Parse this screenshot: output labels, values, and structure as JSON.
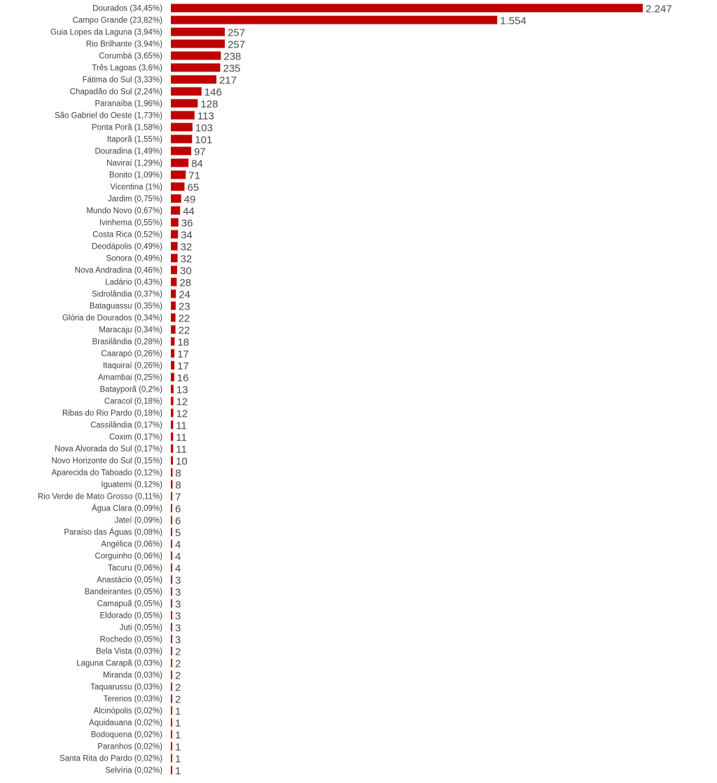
{
  "chart_data": {
    "type": "bar",
    "orientation": "horizontal",
    "color": "#c00000",
    "grid": false,
    "legend": false,
    "title": "",
    "xlabel": "",
    "ylabel": "",
    "xlim": [
      0,
      2247
    ],
    "categories": [
      "Dourados (34,45%)",
      "Campo Grande (23,82%)",
      "Guia Lopes da Laguna (3,94%)",
      "Rio Brilhante (3,94%)",
      "Corumbá (3,65%)",
      "Três Lagoas (3,6%)",
      "Fátima do Sul (3,33%)",
      "Chapadão do Sul (2,24%)",
      "Paranaíba (1,96%)",
      "São Gabriel do Oeste (1,73%)",
      "Ponta Porã (1,58%)",
      "Itaporã (1,55%)",
      "Douradina (1,49%)",
      "Naviraí (1,29%)",
      "Bonito (1,09%)",
      "Vicentina (1%)",
      "Jardim (0,75%)",
      "Mundo Novo (0,67%)",
      "Ivinhema (0,55%)",
      "Costa Rica (0,52%)",
      "Deodápolis (0,49%)",
      "Sonora (0,49%)",
      "Nova Andradina (0,46%)",
      "Ladário (0,43%)",
      "Sidrolândia (0,37%)",
      "Bataguassu (0,35%)",
      "Glória de Dourados (0,34%)",
      "Maracaju (0,34%)",
      "Brasilândia (0,28%)",
      "Caarapó (0,26%)",
      "Itaquiraí (0,26%)",
      "Amambai (0,25%)",
      "Batayporã (0,2%)",
      "Caracol (0,18%)",
      "Ribas do Rio Pardo (0,18%)",
      "Cassilândia (0,17%)",
      "Coxim (0,17%)",
      "Nova Alvorada do Sul (0,17%)",
      "Novo Horizonte do Sul (0,15%)",
      "Aparecida do Taboado (0,12%)",
      "Iguatemi (0,12%)",
      "Rio Verde de Mato Grosso (0,11%)",
      "Água Clara (0,09%)",
      "Jateí (0,09%)",
      "Paraíso das Águas (0,08%)",
      "Angélica (0,06%)",
      "Corguinho (0,06%)",
      "Tacuru (0,06%)",
      "Anastácio (0,05%)",
      "Bandeirantes (0,05%)",
      "Camapuã (0,05%)",
      "Eldorado (0,05%)",
      "Juti (0,05%)",
      "Rochedo (0,05%)",
      "Bela Vista (0,03%)",
      "Laguna Carapã (0,03%)",
      "Miranda (0,03%)",
      "Taquarussu (0,03%)",
      "Terenos (0,03%)",
      "Alcinópolis (0,02%)",
      "Aquidauana (0,02%)",
      "Bodoquena (0,02%)",
      "Paranhos (0,02%)",
      "Santa Rita do Pardo (0,02%)",
      "Selvíria (0,02%)"
    ],
    "values": [
      2247,
      1554,
      257,
      257,
      238,
      235,
      217,
      146,
      128,
      113,
      103,
      101,
      97,
      84,
      71,
      65,
      49,
      44,
      36,
      34,
      32,
      32,
      30,
      28,
      24,
      23,
      22,
      22,
      18,
      17,
      17,
      16,
      13,
      12,
      12,
      11,
      11,
      11,
      10,
      8,
      8,
      7,
      6,
      6,
      5,
      4,
      4,
      4,
      3,
      3,
      3,
      3,
      3,
      3,
      2,
      2,
      2,
      2,
      2,
      1,
      1,
      1,
      1,
      1,
      1
    ],
    "value_labels": [
      "2.247",
      "1.554",
      "257",
      "257",
      "238",
      "235",
      "217",
      "146",
      "128",
      "113",
      "103",
      "101",
      "97",
      "84",
      "71",
      "65",
      "49",
      "44",
      "36",
      "34",
      "32",
      "32",
      "30",
      "28",
      "24",
      "23",
      "22",
      "22",
      "18",
      "17",
      "17",
      "16",
      "13",
      "12",
      "12",
      "11",
      "11",
      "11",
      "10",
      "8",
      "8",
      "7",
      "6",
      "6",
      "5",
      "4",
      "4",
      "4",
      "3",
      "3",
      "3",
      "3",
      "3",
      "3",
      "2",
      "2",
      "2",
      "2",
      "2",
      "1",
      "1",
      "1",
      "1",
      "1",
      "1"
    ]
  }
}
